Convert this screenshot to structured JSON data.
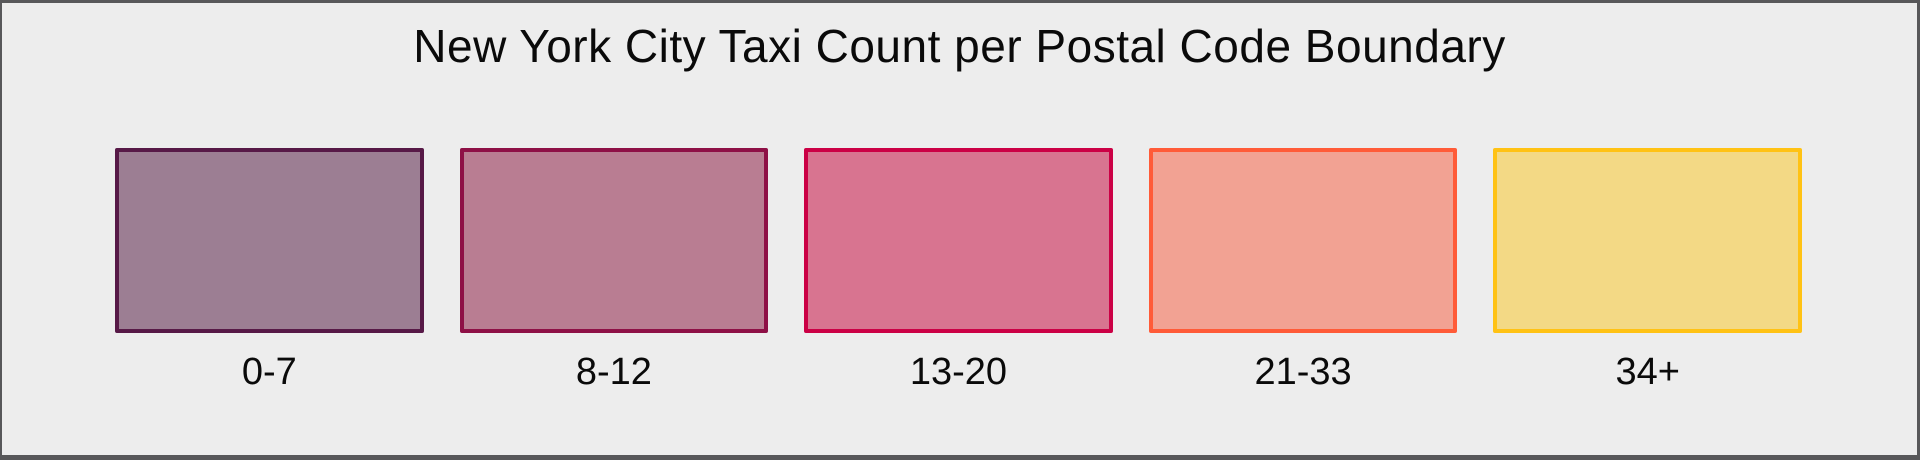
{
  "title": "New York City Taxi Count per Postal Code Boundary",
  "colors": {
    "background": "#EDEDED",
    "frame_border": "#58585A",
    "text": "#0A0A0A"
  },
  "chart_data": {
    "type": "legend",
    "title": "New York City Taxi Count per Postal Code Boundary",
    "subtitle": "",
    "legend_position": "horizontal-row",
    "categories": [
      "0-7",
      "8-12",
      "13-20",
      "21-33",
      "34+"
    ],
    "bins": [
      {
        "label": "0-7",
        "fill": "#9C7E93",
        "border": "#571947"
      },
      {
        "label": "8-12",
        "fill": "#B97D92",
        "border": "#8E1046"
      },
      {
        "label": "13-20",
        "fill": "#D87490",
        "border": "#CB0045"
      },
      {
        "label": "21-33",
        "fill": "#F2A293",
        "border": "#FF5B38"
      },
      {
        "label": "34+",
        "fill": "#F3D985",
        "border": "#FFC214"
      }
    ]
  }
}
